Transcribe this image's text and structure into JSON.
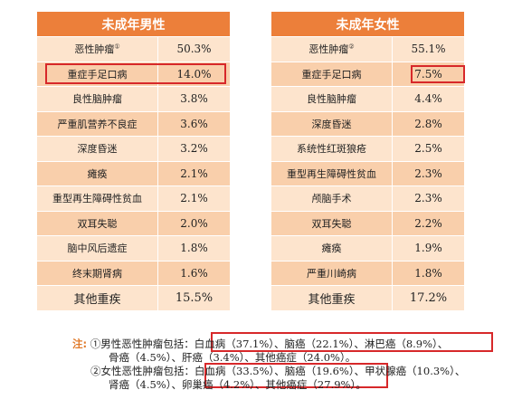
{
  "male": {
    "title": "未成年男性",
    "rows": [
      {
        "name": "恶性肿瘤",
        "mark": "①",
        "value": "50.3%"
      },
      {
        "name": "重症手足口病",
        "mark": "",
        "value": "14.0%"
      },
      {
        "name": "良性脑肿瘤",
        "mark": "",
        "value": "3.8%"
      },
      {
        "name": "严重肌营养不良症",
        "mark": "",
        "value": "3.6%"
      },
      {
        "name": "深度昏迷",
        "mark": "",
        "value": "3.2%"
      },
      {
        "name": "瘫痪",
        "mark": "",
        "value": "2.1%"
      },
      {
        "name": "重型再生障碍性贫血",
        "mark": "",
        "value": "2.1%"
      },
      {
        "name": "双耳失聪",
        "mark": "",
        "value": "2.0%"
      },
      {
        "name": "脑中风后遗症",
        "mark": "",
        "value": "1.8%"
      },
      {
        "name": "终末期肾病",
        "mark": "",
        "value": "1.6%"
      },
      {
        "name": "其他重疾",
        "mark": "",
        "value": "15.5%"
      }
    ]
  },
  "female": {
    "title": "未成年女性",
    "rows": [
      {
        "name": "恶性肿瘤",
        "mark": "②",
        "value": "55.1%"
      },
      {
        "name": "重症手足口病",
        "mark": "",
        "value": "7.5%"
      },
      {
        "name": "良性脑肿瘤",
        "mark": "",
        "value": "4.4%"
      },
      {
        "name": "深度昏迷",
        "mark": "",
        "value": "2.8%"
      },
      {
        "name": "系统性红斑狼疮",
        "mark": "",
        "value": "2.5%"
      },
      {
        "name": "重型再生障碍性贫血",
        "mark": "",
        "value": "2.3%"
      },
      {
        "name": "颅脑手术",
        "mark": "",
        "value": "2.3%"
      },
      {
        "name": "双耳失聪",
        "mark": "",
        "value": "2.2%"
      },
      {
        "name": "瘫痪",
        "mark": "",
        "value": "1.9%"
      },
      {
        "name": "严重川崎病",
        "mark": "",
        "value": "1.8%"
      },
      {
        "name": "其他重疾",
        "mark": "",
        "value": "17.2%"
      }
    ]
  },
  "notes": {
    "label": "注:",
    "line1": "①男性恶性肿瘤包括：白血病（37.1%）、脑癌（22.1%）、淋巴癌（8.9%）、",
    "line2": "骨癌（4.5%）、肝癌（3.4%）、其他癌症（24.0%）。",
    "line3": "②女性恶性肿瘤包括：白血病（33.5%）、脑癌（19.6%）、甲状腺癌（10.3%）、",
    "line4": "肾癌（4.5%）、卵巢癌（4.2%）、其他癌症（27.9%）。"
  },
  "highlight_color": "#d7282a",
  "header_color": "#ec7f3a"
}
